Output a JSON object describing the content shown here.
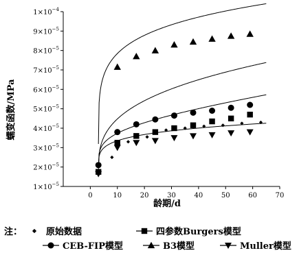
{
  "chart_data": {
    "type": "scatter",
    "xlabel": "龄期/d",
    "ylabel": "蠕变函数/MPa",
    "xlim": [
      -10,
      70
    ],
    "ylim": [
      1e-05,
      0.0001
    ],
    "grid": false,
    "x_ticks": [
      0,
      10,
      20,
      30,
      40,
      50,
      60,
      70
    ],
    "x_tick_labels": [
      "0",
      "10",
      "20",
      "30",
      "40",
      "50",
      "60",
      "70"
    ],
    "y_ticks": [
      1e-05,
      2e-05,
      3e-05,
      4e-05,
      5e-05,
      6e-05,
      7e-05,
      8e-05,
      9e-05,
      0.0001
    ],
    "y_tick_labels": [
      {
        "base": "1×10",
        "exp": "−5"
      },
      {
        "base": "2×10",
        "exp": "−5"
      },
      {
        "base": "3×10",
        "exp": "−5"
      },
      {
        "base": "4×10",
        "exp": "−5"
      },
      {
        "base": "5×10",
        "exp": "−5"
      },
      {
        "base": "6×10",
        "exp": "−5"
      },
      {
        "base": "7×10",
        "exp": "−5"
      },
      {
        "base": "8×10",
        "exp": "−5"
      },
      {
        "base": "9×10",
        "exp": "−5"
      },
      {
        "base": "1×10",
        "exp": "−4"
      }
    ],
    "legend_position": "bottom",
    "legend_prefix": "注：",
    "series": [
      {
        "name": "原始数据",
        "marker": "diamond",
        "x": [
          3,
          8,
          14,
          21,
          28,
          35,
          42,
          49,
          56,
          63
        ],
        "y": [
          2.05e-05,
          2.5e-05,
          3.3e-05,
          3.55e-05,
          3.9e-05,
          4e-05,
          4.1e-05,
          4.15e-05,
          4.25e-05,
          4.3e-05
        ]
      },
      {
        "name": "四参数Burgers模型",
        "marker": "square",
        "x": [
          3,
          10,
          17,
          24,
          31,
          38,
          45,
          52,
          59
        ],
        "y": [
          1.75e-05,
          3.25e-05,
          3.6e-05,
          3.8e-05,
          4e-05,
          4.15e-05,
          4.35e-05,
          4.5e-05,
          4.7e-05
        ],
        "curve": {
          "a": 1.7e-05,
          "b": 1.3e-05,
          "p": 0.2,
          "c": 1.7e-07
        }
      },
      {
        "name": "CEB-FIP模型",
        "marker": "circle",
        "x": [
          3,
          10,
          17,
          24,
          31,
          38,
          45,
          52,
          59
        ],
        "y": [
          2.1e-05,
          3.8e-05,
          4.2e-05,
          4.45e-05,
          4.65e-05,
          4.8e-05,
          4.9e-05,
          5.05e-05,
          5.2e-05
        ],
        "curve": {
          "a": 1.72e-05,
          "b": 1.45e-05,
          "p": 0.33,
          "c": 0
        }
      },
      {
        "name": "B3模型",
        "marker": "triangle-up",
        "x": [
          10,
          17,
          24,
          31,
          38,
          45,
          52,
          59
        ],
        "y": [
          7.15e-05,
          7.7e-05,
          8e-05,
          8.3e-05,
          8.45e-05,
          8.6e-05,
          8.75e-05,
          8.85e-05
        ],
        "curve": {
          "a": 1.7e-05,
          "b": 4.5e-05,
          "p": 0.16,
          "c": 0
        }
      },
      {
        "name": "Muller模型",
        "marker": "triangle-down",
        "x": [
          3,
          10,
          17,
          24,
          31,
          38,
          45,
          52,
          59
        ],
        "y": [
          1.65e-05,
          3e-05,
          3.25e-05,
          3.35e-05,
          3.5e-05,
          3.6e-05,
          3.65e-05,
          3.75e-05,
          3.8e-05
        ],
        "curve": {
          "a": 1.7e-05,
          "b": 1.12e-05,
          "p": 0.2,
          "c": 0
        }
      }
    ]
  }
}
